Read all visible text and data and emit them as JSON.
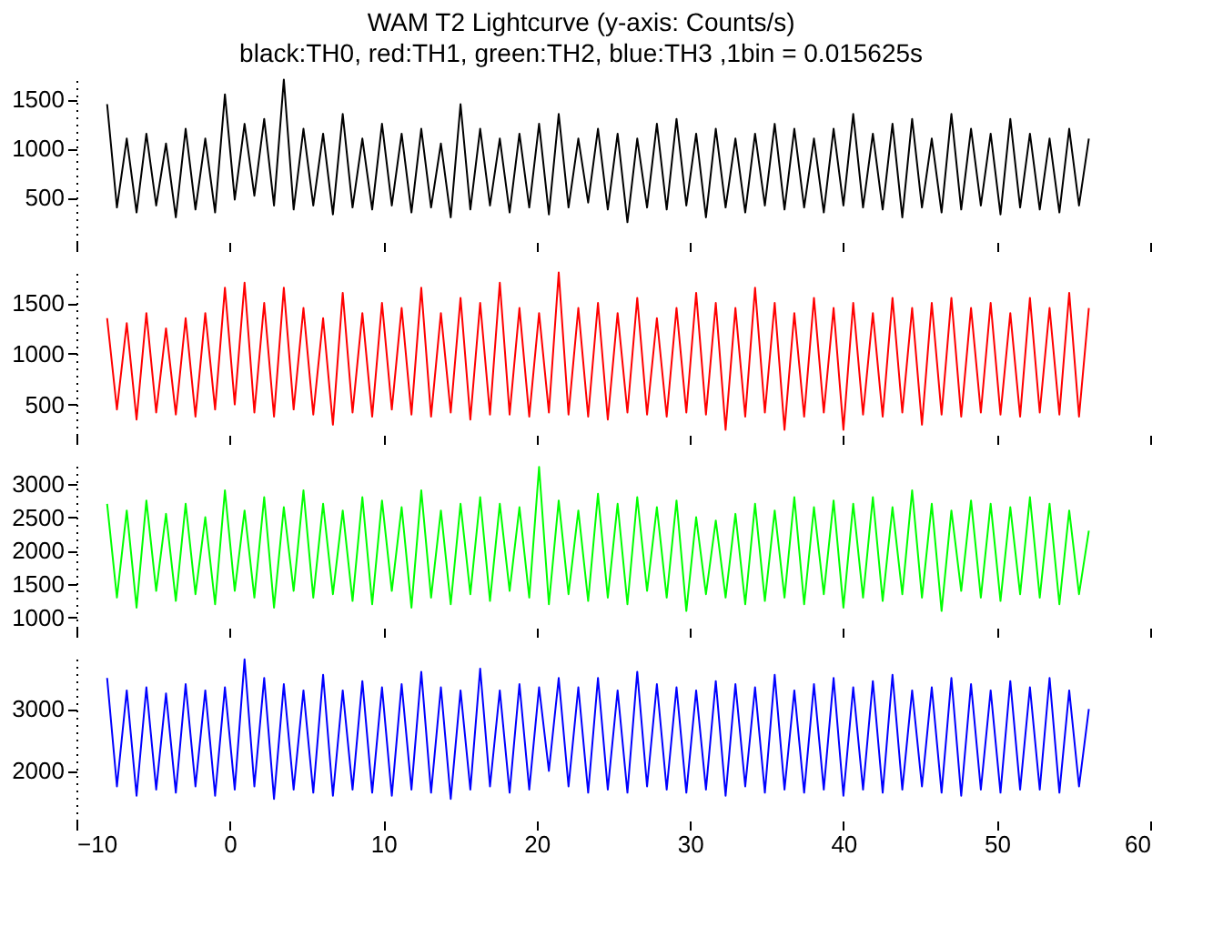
{
  "chart_data": [
    {
      "type": "line",
      "title": "WAM T2 Lightcurve (y-axis: Counts/s)",
      "subtitle": "black:TH0, red:TH1, green:TH2, blue:TH3 ,1bin = 0.015625s",
      "tick_labels": "y",
      "xlim": [
        -10,
        60
      ],
      "xticks": [
        -10,
        0,
        10,
        20,
        30,
        40,
        50,
        60
      ],
      "ylim": [
        50,
        1750
      ],
      "yticks": [
        500,
        1000,
        1500
      ],
      "x": [
        -8,
        -7.36,
        -6.72,
        -6.08,
        -5.44,
        -4.8,
        -4.16,
        -3.52,
        -2.88,
        -2.24,
        -1.6,
        -0.96,
        -0.32,
        0.32,
        0.96,
        1.6,
        2.24,
        2.88,
        3.52,
        4.16,
        4.8,
        5.44,
        6.08,
        6.72,
        7.36,
        8,
        8.64,
        9.28,
        9.92,
        10.56,
        11.2,
        11.84,
        12.48,
        13.12,
        13.76,
        14.4,
        15.04,
        15.68,
        16.32,
        16.96,
        17.6,
        18.24,
        18.88,
        19.52,
        20.16,
        20.8,
        21.44,
        22.08,
        22.72,
        23.36,
        24,
        24.64,
        25.28,
        25.92,
        26.56,
        27.2,
        27.84,
        28.48,
        29.12,
        29.76,
        30.4,
        31.04,
        31.68,
        32.32,
        32.96,
        33.6,
        34.24,
        34.88,
        35.52,
        36.16,
        36.8,
        37.44,
        38.08,
        38.72,
        39.36,
        40,
        40.64,
        41.28,
        41.92,
        42.56,
        43.2,
        43.84,
        44.48,
        45.12,
        45.76,
        46.4,
        47.04,
        47.68,
        48.32,
        48.96,
        49.6,
        50.24,
        50.88,
        51.52,
        52.16,
        52.8,
        53.44,
        54.08,
        54.72,
        55.36,
        56
      ],
      "series": [
        {
          "color": "#000000",
          "values": [
            1450,
            400,
            1100,
            350,
            1150,
            420,
            1050,
            300,
            1200,
            380,
            1100,
            350,
            1550,
            480,
            1250,
            520,
            1300,
            420,
            1700,
            380,
            1200,
            420,
            1150,
            330,
            1350,
            400,
            1100,
            380,
            1250,
            420,
            1150,
            350,
            1200,
            400,
            1050,
            300,
            1450,
            380,
            1200,
            420,
            1100,
            350,
            1150,
            400,
            1250,
            330,
            1350,
            400,
            1100,
            450,
            1200,
            380,
            1150,
            250,
            1100,
            400,
            1250,
            380,
            1300,
            420,
            1150,
            300,
            1200,
            400,
            1100,
            350,
            1150,
            420,
            1250,
            380,
            1200,
            400,
            1100,
            350,
            1200,
            420,
            1350,
            400,
            1150,
            380,
            1250,
            300,
            1300,
            400,
            1100,
            350,
            1350,
            380,
            1200,
            420,
            1150,
            330,
            1300,
            400,
            1150,
            380,
            1100,
            350,
            1200,
            420,
            1100
          ]
        }
      ]
    },
    {
      "type": "line",
      "tick_labels": "y",
      "xlim": [
        -10,
        60
      ],
      "xticks": [
        -10,
        0,
        10,
        20,
        30,
        40,
        50,
        60
      ],
      "ylim": [
        200,
        1850
      ],
      "yticks": [
        500,
        1000,
        1500
      ],
      "x": [
        -8,
        -7.36,
        -6.72,
        -6.08,
        -5.44,
        -4.8,
        -4.16,
        -3.52,
        -2.88,
        -2.24,
        -1.6,
        -0.96,
        -0.32,
        0.32,
        0.96,
        1.6,
        2.24,
        2.88,
        3.52,
        4.16,
        4.8,
        5.44,
        6.08,
        6.72,
        7.36,
        8,
        8.64,
        9.28,
        9.92,
        10.56,
        11.2,
        11.84,
        12.48,
        13.12,
        13.76,
        14.4,
        15.04,
        15.68,
        16.32,
        16.96,
        17.6,
        18.24,
        18.88,
        19.52,
        20.16,
        20.8,
        21.44,
        22.08,
        22.72,
        23.36,
        24,
        24.64,
        25.28,
        25.92,
        26.56,
        27.2,
        27.84,
        28.48,
        29.12,
        29.76,
        30.4,
        31.04,
        31.68,
        32.32,
        32.96,
        33.6,
        34.24,
        34.88,
        35.52,
        36.16,
        36.8,
        37.44,
        38.08,
        38.72,
        39.36,
        40,
        40.64,
        41.28,
        41.92,
        42.56,
        43.2,
        43.84,
        44.48,
        45.12,
        45.76,
        46.4,
        47.04,
        47.68,
        48.32,
        48.96,
        49.6,
        50.24,
        50.88,
        51.52,
        52.16,
        52.8,
        53.44,
        54.08,
        54.72,
        55.36,
        56
      ],
      "series": [
        {
          "color": "#ff0000",
          "values": [
            1350,
            450,
            1300,
            350,
            1400,
            420,
            1250,
            400,
            1350,
            380,
            1400,
            450,
            1650,
            500,
            1700,
            420,
            1500,
            380,
            1650,
            450,
            1450,
            400,
            1350,
            300,
            1600,
            420,
            1400,
            380,
            1500,
            450,
            1450,
            400,
            1650,
            380,
            1400,
            420,
            1550,
            350,
            1500,
            400,
            1700,
            400,
            1450,
            380,
            1400,
            420,
            1800,
            400,
            1450,
            380,
            1500,
            350,
            1400,
            420,
            1550,
            400,
            1350,
            380,
            1450,
            420,
            1600,
            400,
            1500,
            250,
            1450,
            380,
            1650,
            420,
            1500,
            250,
            1400,
            380,
            1550,
            420,
            1450,
            250,
            1500,
            400,
            1400,
            380,
            1550,
            420,
            1450,
            300,
            1500,
            400,
            1550,
            380,
            1450,
            420,
            1500,
            400,
            1400,
            380,
            1550,
            420,
            1450,
            400,
            1600,
            380,
            1450
          ]
        }
      ]
    },
    {
      "type": "line",
      "tick_labels": "y",
      "xlim": [
        -10,
        60
      ],
      "xticks": [
        -10,
        0,
        10,
        20,
        30,
        40,
        50,
        60
      ],
      "ylim": [
        850,
        3350
      ],
      "yticks": [
        1000,
        1500,
        2000,
        2500,
        3000
      ],
      "x": [
        -8,
        -7.36,
        -6.72,
        -6.08,
        -5.44,
        -4.8,
        -4.16,
        -3.52,
        -2.88,
        -2.24,
        -1.6,
        -0.96,
        -0.32,
        0.32,
        0.96,
        1.6,
        2.24,
        2.88,
        3.52,
        4.16,
        4.8,
        5.44,
        6.08,
        6.72,
        7.36,
        8,
        8.64,
        9.28,
        9.92,
        10.56,
        11.2,
        11.84,
        12.48,
        13.12,
        13.76,
        14.4,
        15.04,
        15.68,
        16.32,
        16.96,
        17.6,
        18.24,
        18.88,
        19.52,
        20.16,
        20.8,
        21.44,
        22.08,
        22.72,
        23.36,
        24,
        24.64,
        25.28,
        25.92,
        26.56,
        27.2,
        27.84,
        28.48,
        29.12,
        29.76,
        30.4,
        31.04,
        31.68,
        32.32,
        32.96,
        33.6,
        34.24,
        34.88,
        35.52,
        36.16,
        36.8,
        37.44,
        38.08,
        38.72,
        39.36,
        40,
        40.64,
        41.28,
        41.92,
        42.56,
        43.2,
        43.84,
        44.48,
        45.12,
        45.76,
        46.4,
        47.04,
        47.68,
        48.32,
        48.96,
        49.6,
        50.24,
        50.88,
        51.52,
        52.16,
        52.8,
        53.44,
        54.08,
        54.72,
        55.36,
        56
      ],
      "series": [
        {
          "color": "#00ff00",
          "values": [
            2700,
            1300,
            2600,
            1150,
            2750,
            1400,
            2550,
            1250,
            2700,
            1350,
            2500,
            1200,
            2900,
            1400,
            2600,
            1300,
            2800,
            1150,
            2650,
            1400,
            2900,
            1300,
            2700,
            1350,
            2600,
            1250,
            2800,
            1200,
            2750,
            1400,
            2650,
            1150,
            2900,
            1300,
            2600,
            1200,
            2700,
            1350,
            2800,
            1250,
            2700,
            1400,
            2650,
            1300,
            3250,
            1200,
            2750,
            1350,
            2600,
            1250,
            2850,
            1300,
            2700,
            1200,
            2800,
            1400,
            2650,
            1300,
            2750,
            1100,
            2500,
            1350,
            2450,
            1300,
            2550,
            1200,
            2700,
            1250,
            2600,
            1300,
            2800,
            1200,
            2650,
            1350,
            2750,
            1150,
            2700,
            1300,
            2800,
            1250,
            2650,
            1350,
            2900,
            1300,
            2700,
            1100,
            2600,
            1400,
            2750,
            1300,
            2700,
            1250,
            2650,
            1350,
            2800,
            1300,
            2700,
            1200,
            2600,
            1350,
            2300
          ]
        }
      ]
    },
    {
      "type": "line",
      "xlim": [
        -10,
        60
      ],
      "xticks": [
        -10,
        0,
        10,
        20,
        30,
        40,
        50,
        60
      ],
      "ylim": [
        1200,
        3900
      ],
      "yticks": [
        2000,
        3000
      ],
      "x": [
        -8,
        -7.36,
        -6.72,
        -6.08,
        -5.44,
        -4.8,
        -4.16,
        -3.52,
        -2.88,
        -2.24,
        -1.6,
        -0.96,
        -0.32,
        0.32,
        0.96,
        1.6,
        2.24,
        2.88,
        3.52,
        4.16,
        4.8,
        5.44,
        6.08,
        6.72,
        7.36,
        8,
        8.64,
        9.28,
        9.92,
        10.56,
        11.2,
        11.84,
        12.48,
        13.12,
        13.76,
        14.4,
        15.04,
        15.68,
        16.32,
        16.96,
        17.6,
        18.24,
        18.88,
        19.52,
        20.16,
        20.8,
        21.44,
        22.08,
        22.72,
        23.36,
        24,
        24.64,
        25.28,
        25.92,
        26.56,
        27.2,
        27.84,
        28.48,
        29.12,
        29.76,
        30.4,
        31.04,
        31.68,
        32.32,
        32.96,
        33.6,
        34.24,
        34.88,
        35.52,
        36.16,
        36.8,
        37.44,
        38.08,
        38.72,
        39.36,
        40,
        40.64,
        41.28,
        41.92,
        42.56,
        43.2,
        43.84,
        44.48,
        45.12,
        45.76,
        46.4,
        47.04,
        47.68,
        48.32,
        48.96,
        49.6,
        50.24,
        50.88,
        51.52,
        52.16,
        52.8,
        53.44,
        54.08,
        54.72,
        55.36,
        56
      ],
      "series": [
        {
          "color": "#0000ff",
          "values": [
            3500,
            1750,
            3300,
            1600,
            3350,
            1700,
            3250,
            1650,
            3400,
            1750,
            3300,
            1600,
            3350,
            1700,
            3800,
            1750,
            3500,
            1550,
            3400,
            1700,
            3300,
            1650,
            3550,
            1600,
            3300,
            1700,
            3450,
            1650,
            3350,
            1600,
            3400,
            1700,
            3600,
            1650,
            3350,
            1550,
            3300,
            1700,
            3650,
            1750,
            3300,
            1650,
            3400,
            1700,
            3350,
            2000,
            3500,
            1750,
            3350,
            1650,
            3500,
            1700,
            3300,
            1650,
            3600,
            1750,
            3400,
            1700,
            3350,
            1650,
            3300,
            1700,
            3450,
            1600,
            3400,
            1750,
            3350,
            1650,
            3550,
            1700,
            3300,
            1650,
            3400,
            1700,
            3500,
            1600,
            3350,
            1700,
            3450,
            1650,
            3550,
            1700,
            3300,
            1750,
            3350,
            1650,
            3500,
            1600,
            3400,
            1700,
            3300,
            1650,
            3450,
            1700,
            3350,
            1700,
            3500,
            1650,
            3300,
            1750,
            3000
          ]
        }
      ]
    }
  ]
}
